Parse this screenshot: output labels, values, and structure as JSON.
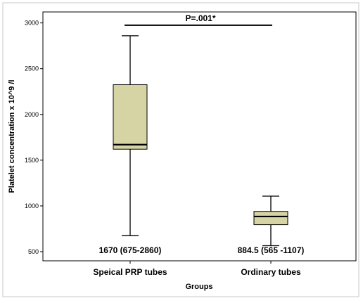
{
  "chart_data": {
    "type": "boxplot",
    "xlabel": "Groups",
    "ylabel": "Platelet concentration x 10^9 /l",
    "ylim": [
      400,
      3120
    ],
    "yticks": [
      500,
      1000,
      1500,
      2000,
      2500,
      3000
    ],
    "grid": false,
    "categories": [
      "Speical PRP tubes",
      "Ordinary tubes"
    ],
    "boxes": [
      {
        "category": "Speical PRP tubes",
        "min": 675,
        "q1": 1620,
        "median": 1670,
        "q3": 2325,
        "max": 2860,
        "label": "1670 (675-2860)"
      },
      {
        "category": "Ordinary tubes",
        "min": 565,
        "q1": 795,
        "median": 884.5,
        "q3": 940,
        "max": 1107,
        "label": "884.5 (565 -1107)"
      }
    ],
    "significance": {
      "label": "P=.001*",
      "value": 2975
    },
    "colors": {
      "box_fill": "#d6d3a5",
      "box_stroke": "#000000",
      "significance_line": "#000000"
    }
  }
}
